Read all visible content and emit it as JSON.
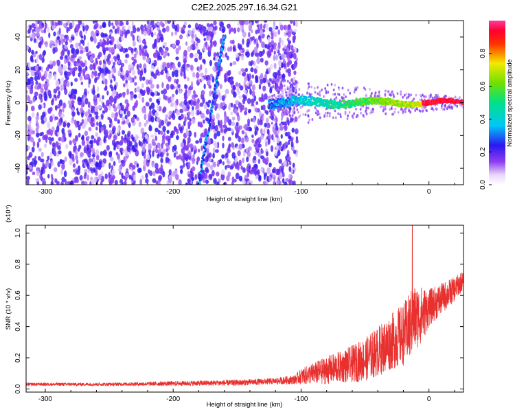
{
  "title": "C2E2.2025.297.16.34.G21",
  "colors": {
    "snr_line": "#e8312f",
    "spectrogram_noise": "#6a1fd9",
    "spectrogram_faint": "#c9a3f0",
    "axis": "#000000"
  },
  "chart_data": [
    {
      "type": "heatmap",
      "name": "spectrogram",
      "xlabel": "Height of straight line (km)",
      "ylabel": "Frequency (Hz)",
      "xlim": [
        -315,
        27
      ],
      "ylim": [
        -50,
        50
      ],
      "x_ticks": [
        -300,
        -200,
        -100,
        0
      ],
      "x_tick_labels": [
        "-300",
        "-200",
        "-100",
        "0"
      ],
      "y_ticks": [
        -40,
        -20,
        0,
        20,
        40
      ],
      "y_tick_labels": [
        "-40",
        "-20",
        "0",
        "20",
        "40"
      ],
      "colorbar": {
        "label": "Normalized spectral amplitude",
        "range": [
          0,
          1
        ],
        "ticks": [
          0.0,
          0.2,
          0.4,
          0.6,
          0.8
        ],
        "tick_labels": [
          "0.0",
          "0.2",
          "0.4",
          "0.6",
          "0.8"
        ],
        "colormap": "rainbow (white-purple-blue-cyan-green-yellow-red-magenta)"
      },
      "features": [
        {
          "description": "tone near 0 Hz",
          "x_range": [
            -125,
            27
          ],
          "y": 0,
          "amplitude_trend": "increases toward 0 km, peak ~1.0 near 0 to 25 km"
        },
        {
          "description": "diagonal streak",
          "x": [
            -180,
            -160
          ],
          "y": [
            -50,
            40
          ]
        },
        {
          "description": "broadband noise",
          "x_range": [
            -315,
            -103
          ],
          "y_range": [
            -50,
            50
          ],
          "amplitude": "~0.1-0.2"
        }
      ]
    },
    {
      "type": "line",
      "name": "snr",
      "xlabel": "Height of straight line (km)",
      "ylabel": "SNR (10 * v/v)",
      "y_multiplier": "(x10⁴)",
      "xlim": [
        -315,
        27
      ],
      "ylim": [
        -0.02,
        1.05
      ],
      "x_ticks": [
        -300,
        -200,
        -100,
        0
      ],
      "x_tick_labels": [
        "-300",
        "-200",
        "-100",
        "0"
      ],
      "y_ticks": [
        0.0,
        0.2,
        0.4,
        0.6,
        0.8,
        1.0
      ],
      "y_tick_labels": [
        "0.0",
        "0.2",
        "0.4",
        "0.6",
        "0.8",
        "1.0"
      ],
      "series": [
        {
          "x": [
            -315,
            -250,
            -200,
            -150,
            -120,
            -105,
            -100,
            -90,
            -80,
            -70,
            -60,
            -50,
            -40,
            -30,
            -20,
            -15,
            -12,
            -5,
            0,
            10,
            20,
            27
          ],
          "y_mean": [
            0.03,
            0.03,
            0.035,
            0.04,
            0.05,
            0.06,
            0.08,
            0.1,
            0.12,
            0.14,
            0.16,
            0.19,
            0.24,
            0.3,
            0.35,
            0.4,
            0.45,
            0.48,
            0.52,
            0.58,
            0.64,
            0.7
          ],
          "y_spread": [
            0.01,
            0.01,
            0.015,
            0.02,
            0.02,
            0.03,
            0.05,
            0.07,
            0.09,
            0.1,
            0.12,
            0.14,
            0.16,
            0.18,
            0.2,
            0.22,
            0.22,
            0.18,
            0.12,
            0.1,
            0.08,
            0.06
          ],
          "peak": {
            "x": -13,
            "y": 1.05
          }
        }
      ]
    }
  ]
}
